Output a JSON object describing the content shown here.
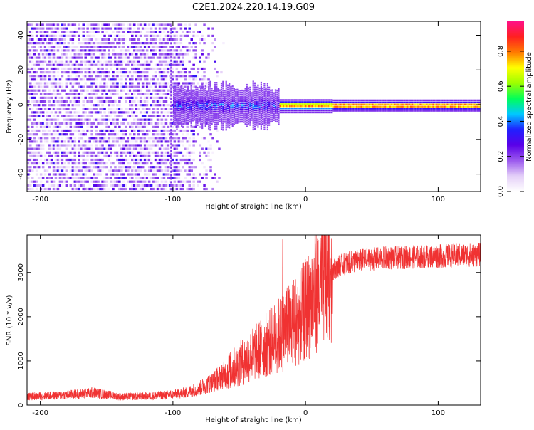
{
  "title": "C2E1.2024.220.14.19.G09",
  "chart_data": [
    {
      "type": "heatmap",
      "xlabel": "Height of straight line (km)",
      "ylabel": "Frequency (Hz)",
      "xlim": [
        -210,
        132
      ],
      "ylim": [
        -50,
        48
      ],
      "x_ticks": [
        -200,
        -100,
        0,
        100
      ],
      "y_ticks": [
        -40,
        -20,
        0,
        20,
        40
      ],
      "colorbar": {
        "label": "Normalized spectral amplitude",
        "range": [
          0,
          0.97
        ],
        "ticks": [
          0.0,
          0.2,
          0.4,
          0.6,
          0.8
        ],
        "colors": [
          "#ffffff",
          "#e4cff8",
          "#9b59ee",
          "#5a00e8",
          "#2020ff",
          "#00c8ff",
          "#00ff5a",
          "#9bff00",
          "#ffff00",
          "#ff7a00",
          "#ff2020",
          "#ff1088"
        ]
      },
      "features": {
        "noise_region_x": [
          -210,
          -60
        ],
        "dense_noise_edge_x": -100,
        "carrier_line_freq_hz": 0,
        "carrier_line_start_x": -100,
        "carrier_peak_amplitude": 0.85
      }
    },
    {
      "type": "line",
      "xlabel": "Height of straight line (km)",
      "ylabel": "SNR (10 * v/v)",
      "xlim": [
        -210,
        132
      ],
      "ylim": [
        0,
        3850
      ],
      "x_ticks": [
        -200,
        -100,
        0,
        100
      ],
      "y_ticks": [
        0,
        1000,
        2000,
        3000
      ],
      "color": "#f03232",
      "grid": false,
      "trend_x": [
        -210,
        -180,
        -160,
        -140,
        -120,
        -100,
        -90,
        -80,
        -70,
        -60,
        -50,
        -40,
        -30,
        -20,
        -10,
        0,
        5,
        10,
        15,
        20,
        25,
        30,
        40,
        50,
        60,
        70,
        80,
        90,
        100,
        110,
        120,
        132
      ],
      "trend_y": [
        190,
        230,
        280,
        190,
        200,
        240,
        280,
        380,
        520,
        720,
        930,
        1140,
        1350,
        1580,
        1850,
        2150,
        2420,
        2700,
        2950,
        3050,
        3150,
        3200,
        3270,
        3300,
        3330,
        3340,
        3350,
        3360,
        3370,
        3380,
        3390,
        3400
      ]
    }
  ]
}
